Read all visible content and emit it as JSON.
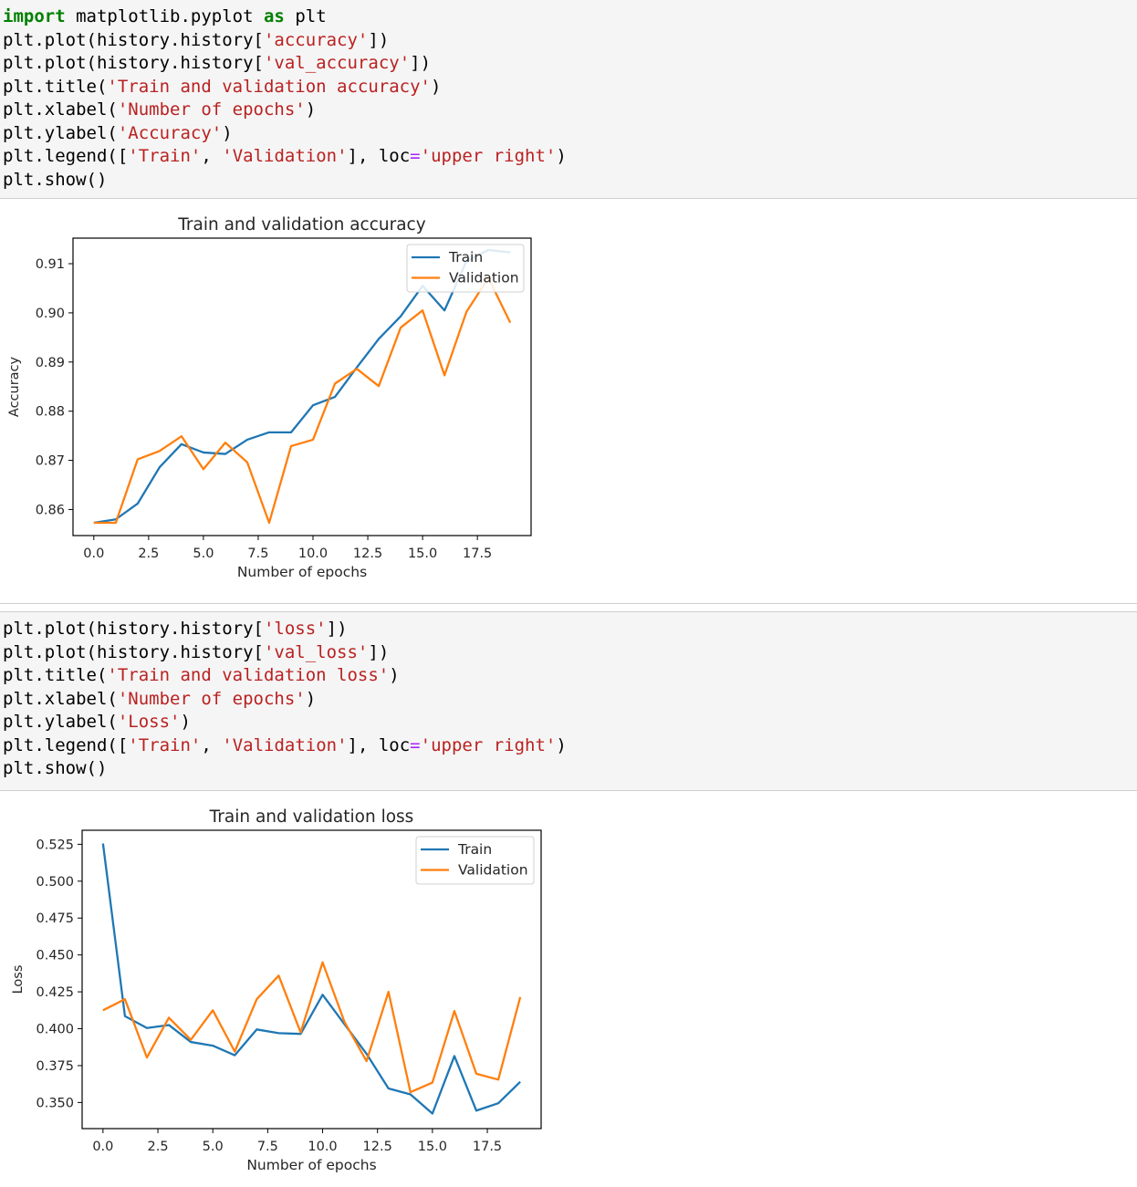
{
  "cells": [
    {
      "code_lines": [
        [
          {
            "t": "import",
            "c": "kw"
          },
          {
            "t": " matplotlib.pyplot ",
            "c": ""
          },
          {
            "t": "as",
            "c": "kw"
          },
          {
            "t": " plt",
            "c": ""
          }
        ],
        [
          {
            "t": "plt.plot(history.history[",
            "c": ""
          },
          {
            "t": "'accuracy'",
            "c": "str"
          },
          {
            "t": "])",
            "c": ""
          }
        ],
        [
          {
            "t": "plt.plot(history.history[",
            "c": ""
          },
          {
            "t": "'val_accuracy'",
            "c": "str"
          },
          {
            "t": "])",
            "c": ""
          }
        ],
        [
          {
            "t": "plt.title(",
            "c": ""
          },
          {
            "t": "'Train and validation accuracy'",
            "c": "str"
          },
          {
            "t": ")",
            "c": ""
          }
        ],
        [
          {
            "t": "plt.xlabel(",
            "c": ""
          },
          {
            "t": "'Number of epochs'",
            "c": "str"
          },
          {
            "t": ")",
            "c": ""
          }
        ],
        [
          {
            "t": "plt.ylabel(",
            "c": ""
          },
          {
            "t": "'Accuracy'",
            "c": "str"
          },
          {
            "t": ")",
            "c": ""
          }
        ],
        [
          {
            "t": "plt.legend([",
            "c": ""
          },
          {
            "t": "'Train'",
            "c": "str"
          },
          {
            "t": ", ",
            "c": ""
          },
          {
            "t": "'Validation'",
            "c": "str"
          },
          {
            "t": "], loc",
            "c": ""
          },
          {
            "t": "=",
            "c": "op"
          },
          {
            "t": "'upper right'",
            "c": "str"
          },
          {
            "t": ")",
            "c": ""
          }
        ],
        [
          {
            "t": "plt.show()",
            "c": ""
          }
        ]
      ]
    },
    {
      "code_lines": [
        [
          {
            "t": "plt.plot(history.history[",
            "c": ""
          },
          {
            "t": "'loss'",
            "c": "str"
          },
          {
            "t": "])",
            "c": ""
          }
        ],
        [
          {
            "t": "plt.plot(history.history[",
            "c": ""
          },
          {
            "t": "'val_loss'",
            "c": "str"
          },
          {
            "t": "])",
            "c": ""
          }
        ],
        [
          {
            "t": "plt.title(",
            "c": ""
          },
          {
            "t": "'Train and validation loss'",
            "c": "str"
          },
          {
            "t": ")",
            "c": ""
          }
        ],
        [
          {
            "t": "plt.xlabel(",
            "c": ""
          },
          {
            "t": "'Number of epochs'",
            "c": "str"
          },
          {
            "t": ")",
            "c": ""
          }
        ],
        [
          {
            "t": "plt.ylabel(",
            "c": ""
          },
          {
            "t": "'Loss'",
            "c": "str"
          },
          {
            "t": ")",
            "c": ""
          }
        ],
        [
          {
            "t": "plt.legend([",
            "c": ""
          },
          {
            "t": "'Train'",
            "c": "str"
          },
          {
            "t": ", ",
            "c": ""
          },
          {
            "t": "'Validation'",
            "c": "str"
          },
          {
            "t": "], loc",
            "c": ""
          },
          {
            "t": "=",
            "c": "op"
          },
          {
            "t": "'upper right'",
            "c": "str"
          },
          {
            "t": ")",
            "c": ""
          }
        ],
        [
          {
            "t": "plt.show()",
            "c": ""
          }
        ]
      ]
    }
  ],
  "chart_data": [
    {
      "type": "line",
      "title": "Train and validation accuracy",
      "xlabel": "Number of epochs",
      "ylabel": "Accuracy",
      "x": [
        0,
        1,
        2,
        3,
        4,
        5,
        6,
        7,
        8,
        9,
        10,
        11,
        12,
        13,
        14,
        15,
        16,
        17,
        18,
        19
      ],
      "xlim": [
        -0.95,
        19.95
      ],
      "ylim": [
        0.8547,
        0.9152
      ],
      "xticks": [
        0.0,
        2.5,
        5.0,
        7.5,
        10.0,
        12.5,
        15.0,
        17.5
      ],
      "xticklabels": [
        "0.0",
        "2.5",
        "5.0",
        "7.5",
        "10.0",
        "12.5",
        "15.0",
        "17.5"
      ],
      "yticks": [
        0.86,
        0.87,
        0.88,
        0.89,
        0.9,
        0.91
      ],
      "yticklabels": [
        "0.86",
        "0.87",
        "0.88",
        "0.89",
        "0.90",
        "0.91"
      ],
      "legend_position": "upper right",
      "series": [
        {
          "name": "Train",
          "color": "#1f77b4",
          "values": [
            0.8573,
            0.858,
            0.8612,
            0.8686,
            0.8733,
            0.8716,
            0.8713,
            0.8742,
            0.8757,
            0.8757,
            0.8812,
            0.8829,
            0.8889,
            0.8947,
            0.8993,
            0.9055,
            0.9005,
            0.9105,
            0.9128,
            0.9123
          ]
        },
        {
          "name": "Validation",
          "color": "#ff7f0e",
          "values": [
            0.8573,
            0.8573,
            0.8702,
            0.8719,
            0.8749,
            0.8682,
            0.8736,
            0.8696,
            0.8573,
            0.8729,
            0.8742,
            0.8856,
            0.8886,
            0.8851,
            0.897,
            0.9005,
            0.8873,
            0.9002,
            0.9071,
            0.898
          ]
        }
      ]
    },
    {
      "type": "line",
      "title": "Train and validation loss",
      "xlabel": "Number of epochs",
      "ylabel": "Loss",
      "x": [
        0,
        1,
        2,
        3,
        4,
        5,
        6,
        7,
        8,
        9,
        10,
        11,
        12,
        13,
        14,
        15,
        16,
        17,
        18,
        19
      ],
      "xlim": [
        -0.95,
        19.95
      ],
      "ylim": [
        0.3323,
        0.5345
      ],
      "xticks": [
        0.0,
        2.5,
        5.0,
        7.5,
        10.0,
        12.5,
        15.0,
        17.5
      ],
      "xticklabels": [
        "0.0",
        "2.5",
        "5.0",
        "7.5",
        "10.0",
        "12.5",
        "15.0",
        "17.5"
      ],
      "yticks": [
        0.35,
        0.375,
        0.4,
        0.425,
        0.45,
        0.475,
        0.5,
        0.525
      ],
      "yticklabels": [
        "0.350",
        "0.375",
        "0.400",
        "0.425",
        "0.450",
        "0.475",
        "0.500",
        "0.525"
      ],
      "legend_position": "upper right",
      "series": [
        {
          "name": "Train",
          "color": "#1f77b4",
          "values": [
            0.5255,
            0.4085,
            0.4005,
            0.4025,
            0.391,
            0.3885,
            0.382,
            0.3995,
            0.397,
            0.3965,
            0.423,
            0.403,
            0.383,
            0.3595,
            0.3555,
            0.3425,
            0.3815,
            0.3445,
            0.3495,
            0.364
          ]
        },
        {
          "name": "Validation",
          "color": "#ff7f0e",
          "values": [
            0.4125,
            0.42,
            0.3805,
            0.4075,
            0.3925,
            0.4125,
            0.3845,
            0.42,
            0.436,
            0.3975,
            0.445,
            0.4045,
            0.378,
            0.425,
            0.357,
            0.3635,
            0.412,
            0.3695,
            0.3655,
            0.4215
          ]
        }
      ]
    }
  ]
}
